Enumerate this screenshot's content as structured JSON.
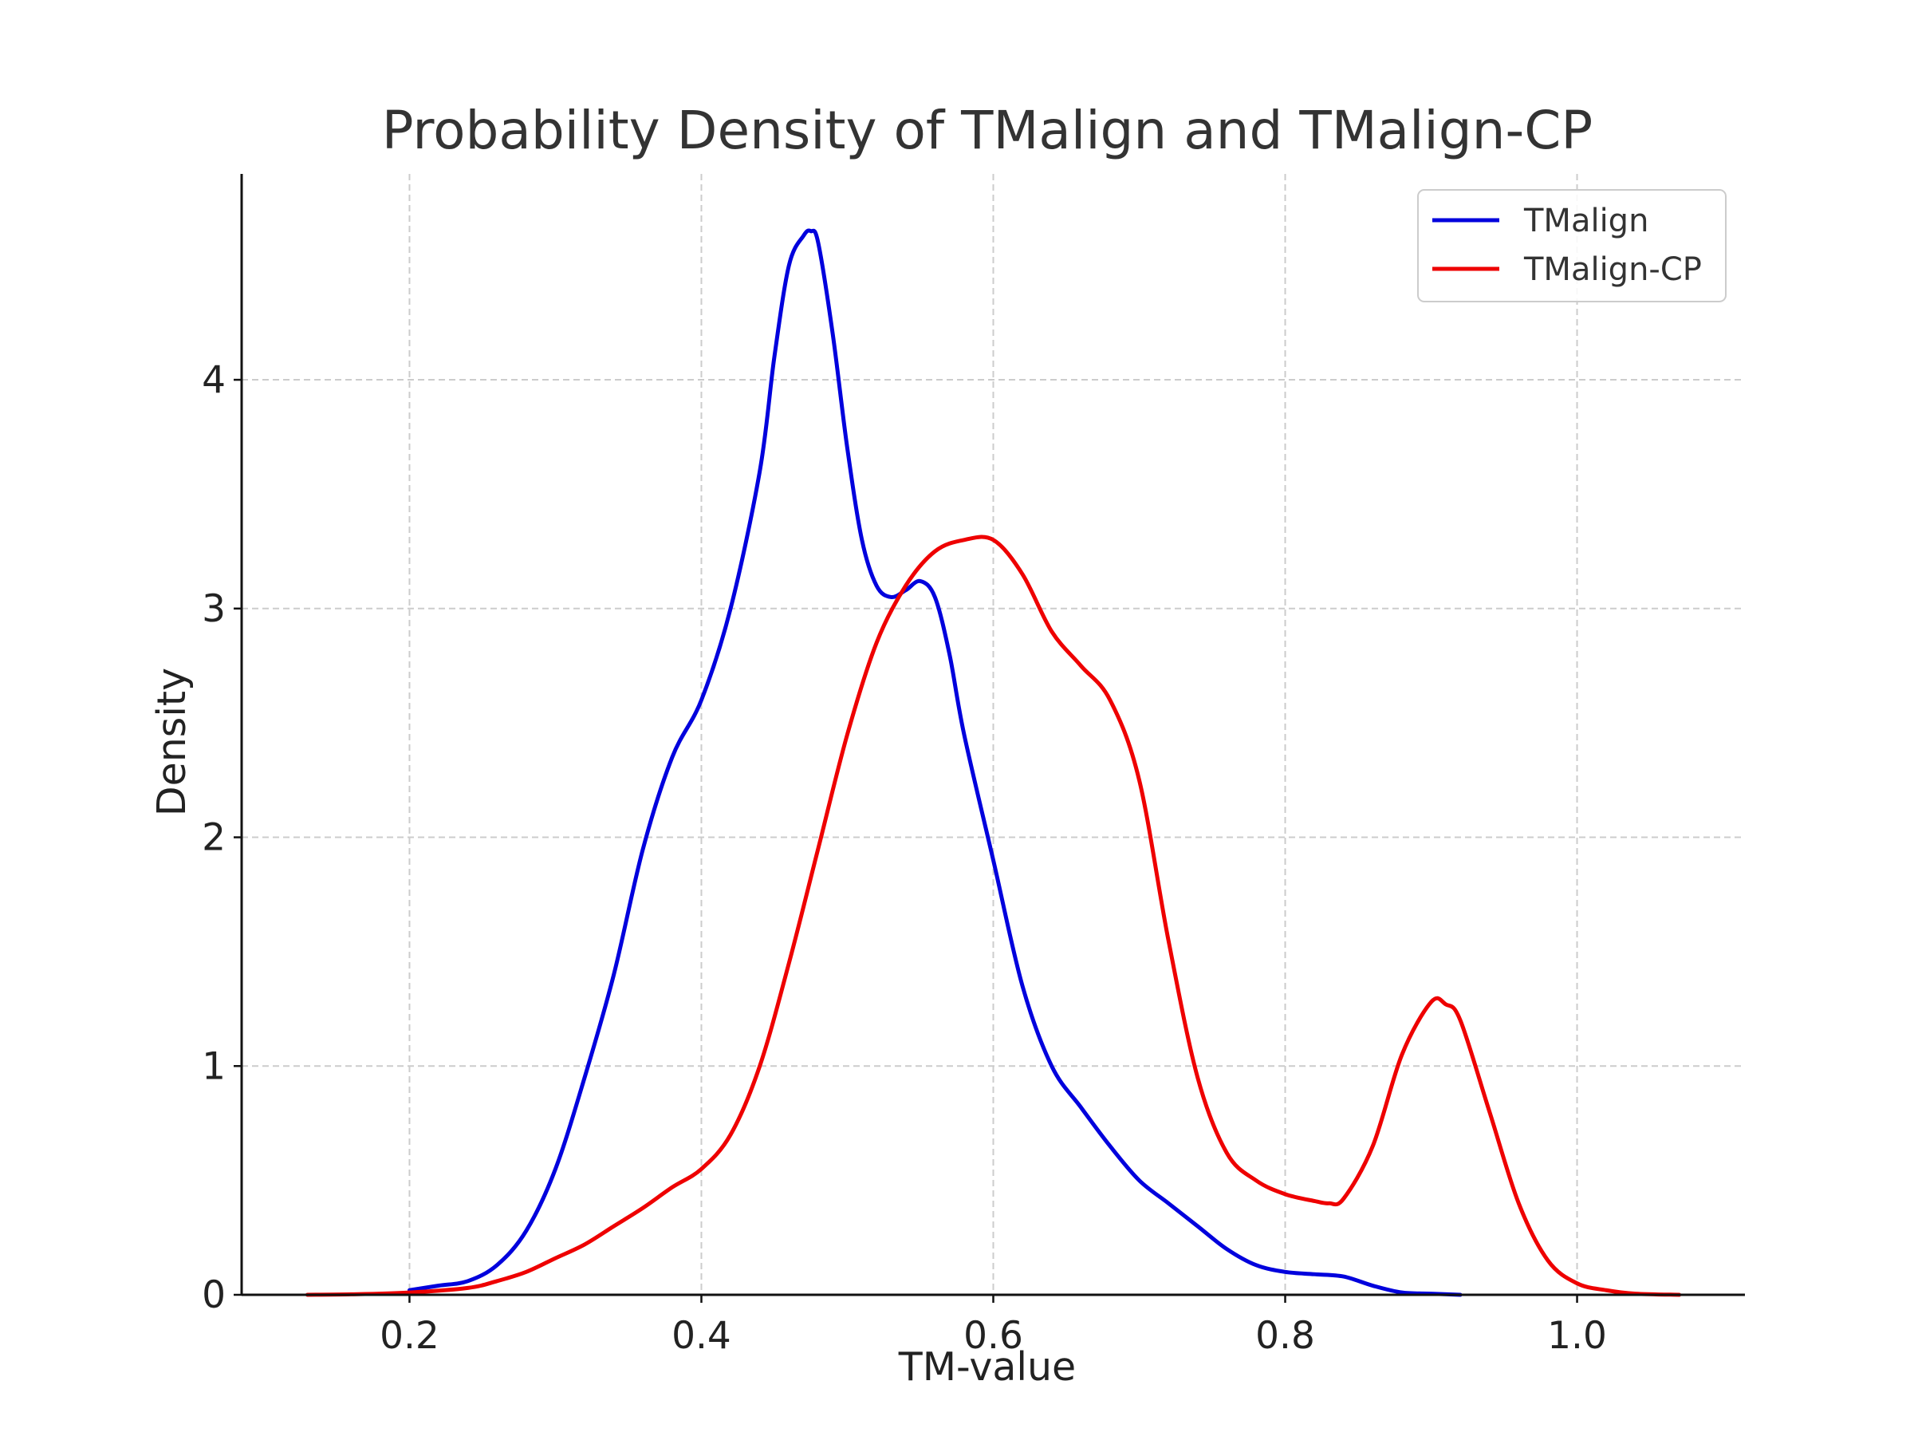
{
  "chart_data": {
    "type": "line",
    "title": "Probability Density of TMalign and TMalign-CP",
    "xlabel": "TM-value",
    "ylabel": "Density",
    "xlim": [
      0.085,
      1.115
    ],
    "ylim": [
      0,
      4.9
    ],
    "x_ticks": [
      0.2,
      0.4,
      0.6,
      0.8,
      1.0
    ],
    "x_tick_labels": [
      "0.2",
      "0.4",
      "0.6",
      "0.8",
      "1.0"
    ],
    "y_ticks": [
      0,
      1,
      2,
      3,
      4
    ],
    "y_tick_labels": [
      "0",
      "1",
      "2",
      "3",
      "4"
    ],
    "grid": true,
    "legend_position": "top-right",
    "series": [
      {
        "name": "TMalign",
        "color": "#0000dd",
        "x": [
          0.2,
          0.22,
          0.24,
          0.26,
          0.28,
          0.3,
          0.32,
          0.34,
          0.36,
          0.38,
          0.4,
          0.42,
          0.44,
          0.45,
          0.46,
          0.47,
          0.475,
          0.48,
          0.49,
          0.5,
          0.51,
          0.52,
          0.53,
          0.54,
          0.55,
          0.56,
          0.57,
          0.58,
          0.6,
          0.62,
          0.64,
          0.66,
          0.68,
          0.7,
          0.72,
          0.74,
          0.76,
          0.78,
          0.8,
          0.82,
          0.84,
          0.86,
          0.88,
          0.9,
          0.92
        ],
        "y": [
          0.02,
          0.04,
          0.06,
          0.13,
          0.28,
          0.55,
          0.95,
          1.4,
          1.95,
          2.35,
          2.6,
          3.0,
          3.6,
          4.1,
          4.5,
          4.63,
          4.65,
          4.6,
          4.2,
          3.7,
          3.3,
          3.1,
          3.05,
          3.08,
          3.12,
          3.05,
          2.8,
          2.45,
          1.9,
          1.35,
          1.0,
          0.82,
          0.65,
          0.5,
          0.4,
          0.3,
          0.2,
          0.13,
          0.1,
          0.09,
          0.08,
          0.04,
          0.01,
          0.005,
          0.0
        ]
      },
      {
        "name": "TMalign-CP",
        "color": "#ee0000",
        "x": [
          0.13,
          0.16,
          0.2,
          0.24,
          0.26,
          0.28,
          0.3,
          0.32,
          0.34,
          0.36,
          0.38,
          0.4,
          0.42,
          0.44,
          0.46,
          0.48,
          0.5,
          0.52,
          0.54,
          0.56,
          0.58,
          0.6,
          0.62,
          0.64,
          0.66,
          0.68,
          0.7,
          0.72,
          0.74,
          0.76,
          0.78,
          0.8,
          0.82,
          0.83,
          0.84,
          0.86,
          0.88,
          0.9,
          0.91,
          0.92,
          0.94,
          0.96,
          0.98,
          1.0,
          1.02,
          1.04,
          1.07
        ],
        "y": [
          0.0,
          0.002,
          0.01,
          0.03,
          0.06,
          0.1,
          0.16,
          0.22,
          0.3,
          0.38,
          0.47,
          0.55,
          0.7,
          1.0,
          1.45,
          1.95,
          2.45,
          2.85,
          3.1,
          3.25,
          3.3,
          3.3,
          3.15,
          2.9,
          2.75,
          2.6,
          2.25,
          1.55,
          0.95,
          0.62,
          0.5,
          0.44,
          0.41,
          0.4,
          0.42,
          0.65,
          1.05,
          1.28,
          1.27,
          1.2,
          0.8,
          0.4,
          0.15,
          0.05,
          0.02,
          0.005,
          0.0
        ]
      }
    ]
  }
}
